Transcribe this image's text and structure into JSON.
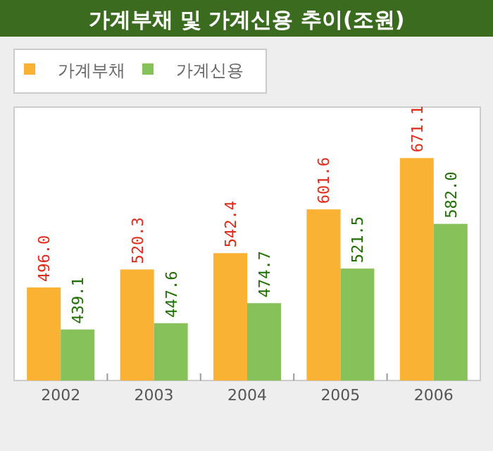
{
  "chart_data": {
    "type": "bar",
    "title": "가계부채 및 가계신용 추이(조원)",
    "categories": [
      "2002",
      "2003",
      "2004",
      "2005",
      "2006"
    ],
    "series": [
      {
        "name": "가계부채",
        "color": "#f9b233",
        "values": [
          496.0,
          520.3,
          542.4,
          601.6,
          671.1
        ],
        "value_labels": [
          "496.0",
          "520.3",
          "542.4",
          "601.6",
          "671.1"
        ]
      },
      {
        "name": "가계신용",
        "color": "#86c15a",
        "values": [
          439.1,
          447.6,
          474.7,
          521.5,
          582.0
        ],
        "value_labels": [
          "439.1",
          "447.6",
          "474.7",
          "521.5",
          "582.0"
        ]
      }
    ],
    "ylim": [
      370,
      740
    ],
    "legend": "top left",
    "tick_labels": "x"
  }
}
